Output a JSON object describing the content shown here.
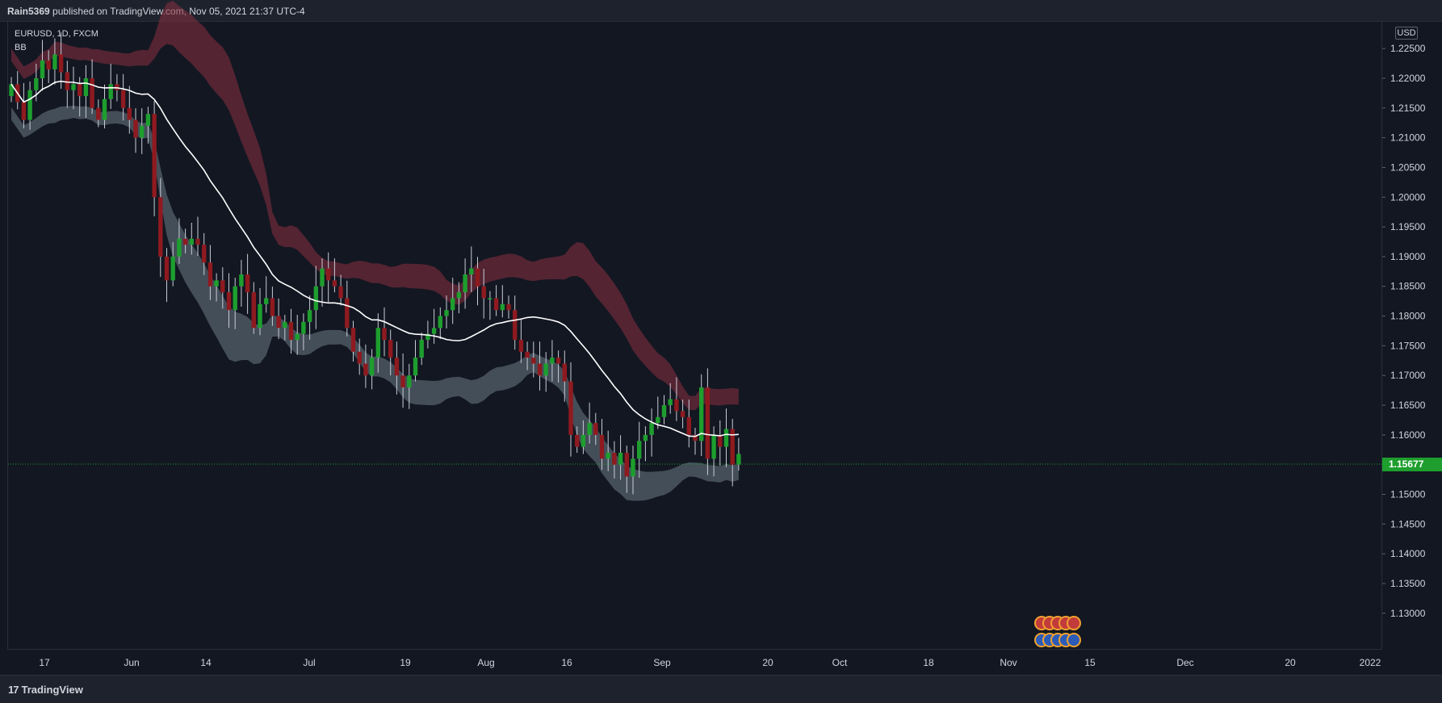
{
  "header": {
    "author": "Rain5369",
    "text": "published on TradingView.com, Nov 05, 2021 21:37 UTC-4"
  },
  "legend": {
    "symbol_line": "EURUSD, 1D, FXCM",
    "indicator": "BB"
  },
  "axis": {
    "currency": "USD",
    "last_price_label": "1.15677"
  },
  "footer": {
    "brand": "TradingView"
  },
  "colors": {
    "background": "#131722",
    "up_candle": "#1d9e2e",
    "down_candle": "#8e1a1f",
    "basis_line": "#ffffff",
    "upper_band": "#8b2f3f",
    "lower_band": "#5a6770"
  },
  "chart_data": {
    "type": "candlestick",
    "symbol": "EURUSD",
    "interval": "1D",
    "source": "FXCM",
    "y_ticks": [
      "1.13000",
      "1.13500",
      "1.14000",
      "1.14500",
      "1.15000",
      "1.15500",
      "1.16000",
      "1.16500",
      "1.17000",
      "1.17500",
      "1.18000",
      "1.18500",
      "1.19000",
      "1.19500",
      "1.20000",
      "1.20500",
      "1.21000",
      "1.21500",
      "1.22000",
      "1.22500"
    ],
    "ylim": [
      1.124,
      1.2295
    ],
    "x_ticks": [
      "17",
      "Jun",
      "14",
      "Jul",
      "19",
      "Aug",
      "16",
      "Sep",
      "20",
      "Oct",
      "18",
      "Nov",
      "15",
      "Dec",
      "20",
      "2022"
    ],
    "last_price": 1.15677,
    "closes": [
      1.219,
      1.216,
      1.213,
      1.218,
      1.22,
      1.223,
      1.2215,
      1.224,
      1.221,
      1.218,
      1.219,
      1.217,
      1.22,
      1.215,
      1.213,
      1.2165,
      1.219,
      1.218,
      1.215,
      1.213,
      1.21,
      1.212,
      1.214,
      1.2,
      1.19,
      1.186,
      1.19,
      1.193,
      1.192,
      1.193,
      1.192,
      1.189,
      1.185,
      1.186,
      1.184,
      1.181,
      1.185,
      1.187,
      1.184,
      1.178,
      1.182,
      1.183,
      1.18,
      1.178,
      1.179,
      1.176,
      1.177,
      1.179,
      1.181,
      1.185,
      1.188,
      1.186,
      1.185,
      1.183,
      1.178,
      1.174,
      1.172,
      1.17,
      1.173,
      1.178,
      1.176,
      1.173,
      1.17,
      1.168,
      1.17,
      1.173,
      1.176,
      1.177,
      1.178,
      1.18,
      1.181,
      1.183,
      1.184,
      1.187,
      1.188,
      1.185,
      1.183,
      1.183,
      1.181,
      1.182,
      1.181,
      1.176,
      1.174,
      1.173,
      1.172,
      1.17,
      1.172,
      1.173,
      1.172,
      1.169,
      1.16,
      1.158,
      1.16,
      1.162,
      1.16,
      1.156,
      1.157,
      1.155,
      1.157,
      1.153,
      1.156,
      1.159,
      1.16,
      1.162,
      1.163,
      1.165,
      1.166,
      1.164,
      1.163,
      1.16,
      1.159,
      1.168,
      1.156,
      1.16,
      1.158,
      1.161,
      1.155,
      1.1568
    ]
  }
}
